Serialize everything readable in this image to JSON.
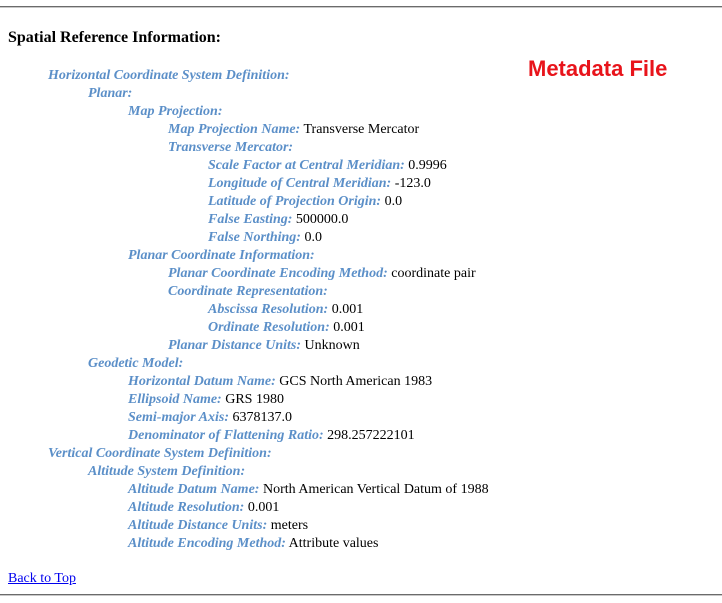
{
  "section_heading": "Spatial Reference Information:",
  "watermark": "Metadata File",
  "colors": {
    "key": "#5b8fc8",
    "watermark": "#e8141b",
    "link": "#0000ee"
  },
  "rows": [
    {
      "key": "Horizontal Coordinate System Definition:",
      "value": ""
    },
    {
      "key": "Planar:",
      "value": ""
    },
    {
      "key": "Map Projection:",
      "value": ""
    },
    {
      "key": "Map Projection Name:",
      "value": "Transverse Mercator"
    },
    {
      "key": "Transverse Mercator:",
      "value": ""
    },
    {
      "key": "Scale Factor at Central Meridian:",
      "value": "0.9996"
    },
    {
      "key": "Longitude of Central Meridian:",
      "value": "-123.0"
    },
    {
      "key": "Latitude of Projection Origin:",
      "value": "0.0"
    },
    {
      "key": "False Easting:",
      "value": "500000.0"
    },
    {
      "key": "False Northing:",
      "value": "0.0"
    },
    {
      "key": "Planar Coordinate Information:",
      "value": ""
    },
    {
      "key": "Planar Coordinate Encoding Method:",
      "value": "coordinate pair"
    },
    {
      "key": "Coordinate Representation:",
      "value": ""
    },
    {
      "key": "Abscissa Resolution:",
      "value": "0.001"
    },
    {
      "key": "Ordinate Resolution:",
      "value": "0.001"
    },
    {
      "key": "Planar Distance Units:",
      "value": "Unknown"
    },
    {
      "key": "Geodetic Model:",
      "value": ""
    },
    {
      "key": "Horizontal Datum Name:",
      "value": "GCS North American 1983"
    },
    {
      "key": "Ellipsoid Name:",
      "value": "GRS 1980"
    },
    {
      "key": "Semi-major Axis:",
      "value": "6378137.0"
    },
    {
      "key": "Denominator of Flattening Ratio:",
      "value": "298.257222101"
    },
    {
      "key": "Vertical Coordinate System Definition:",
      "value": ""
    },
    {
      "key": "Altitude System Definition:",
      "value": ""
    },
    {
      "key": "Altitude Datum Name:",
      "value": "North American Vertical Datum of 1988"
    },
    {
      "key": "Altitude Resolution:",
      "value": "0.001"
    },
    {
      "key": "Altitude Distance Units:",
      "value": "meters"
    },
    {
      "key": "Altitude Encoding Method:",
      "value": "Attribute values"
    }
  ],
  "back_to_top": "Back to Top"
}
